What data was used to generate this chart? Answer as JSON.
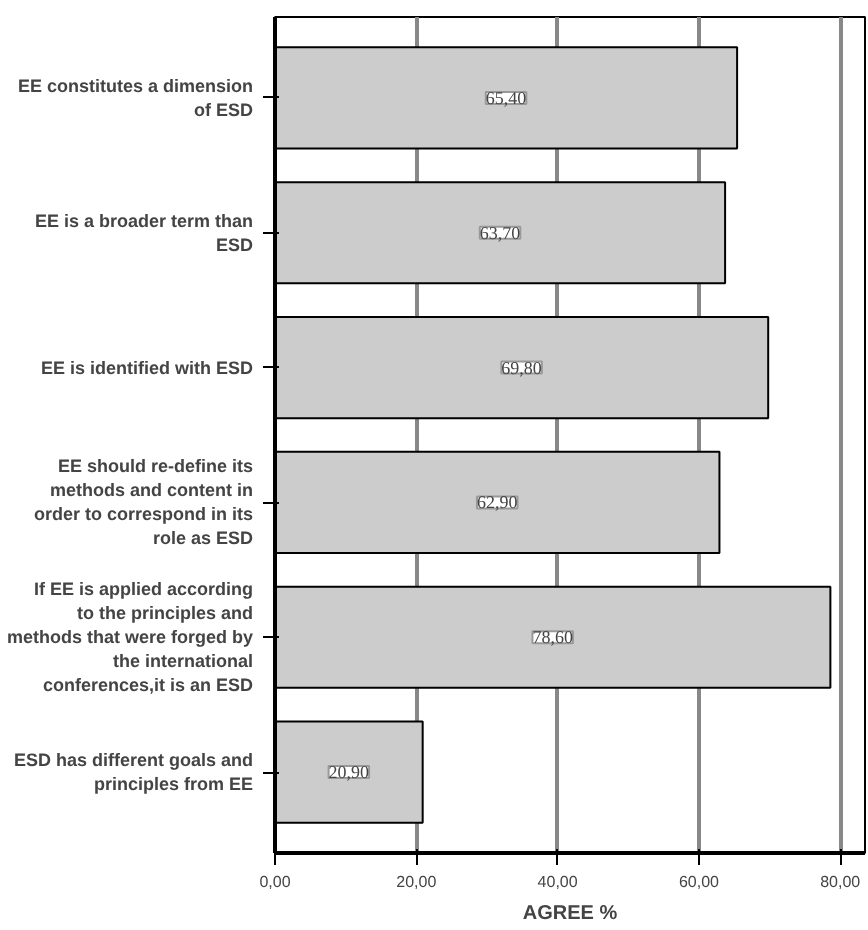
{
  "chart_data": {
    "type": "bar",
    "orientation": "horizontal",
    "xlabel": "AGREE %",
    "categories": [
      "EE constitutes a dimension of ESD",
      "EE is a broader term than ESD",
      "EE is identified with ESD",
      "EE should re-define its methods and content in order to correspond in its role as ESD",
      "If EE is applied according to the principles and methods that were forged by the international conferences,it is an ESD",
      "ESD has different goals and principles from EE"
    ],
    "values": [
      65.4,
      63.7,
      69.8,
      62.9,
      78.6,
      20.9
    ],
    "value_labels": [
      "65,40",
      "63,70",
      "69,80",
      "62,90",
      "78,60",
      "20,90"
    ],
    "color": "#cccccc",
    "xlim": [
      0,
      83.5
    ],
    "xticks": [
      {
        "value": 0,
        "label": "0,00"
      },
      {
        "value": 20,
        "label": "20,00"
      },
      {
        "value": 40,
        "label": "40,00"
      },
      {
        "value": 60,
        "label": "60,00"
      },
      {
        "value": 80,
        "label": "80,00"
      }
    ],
    "grid": "x"
  }
}
